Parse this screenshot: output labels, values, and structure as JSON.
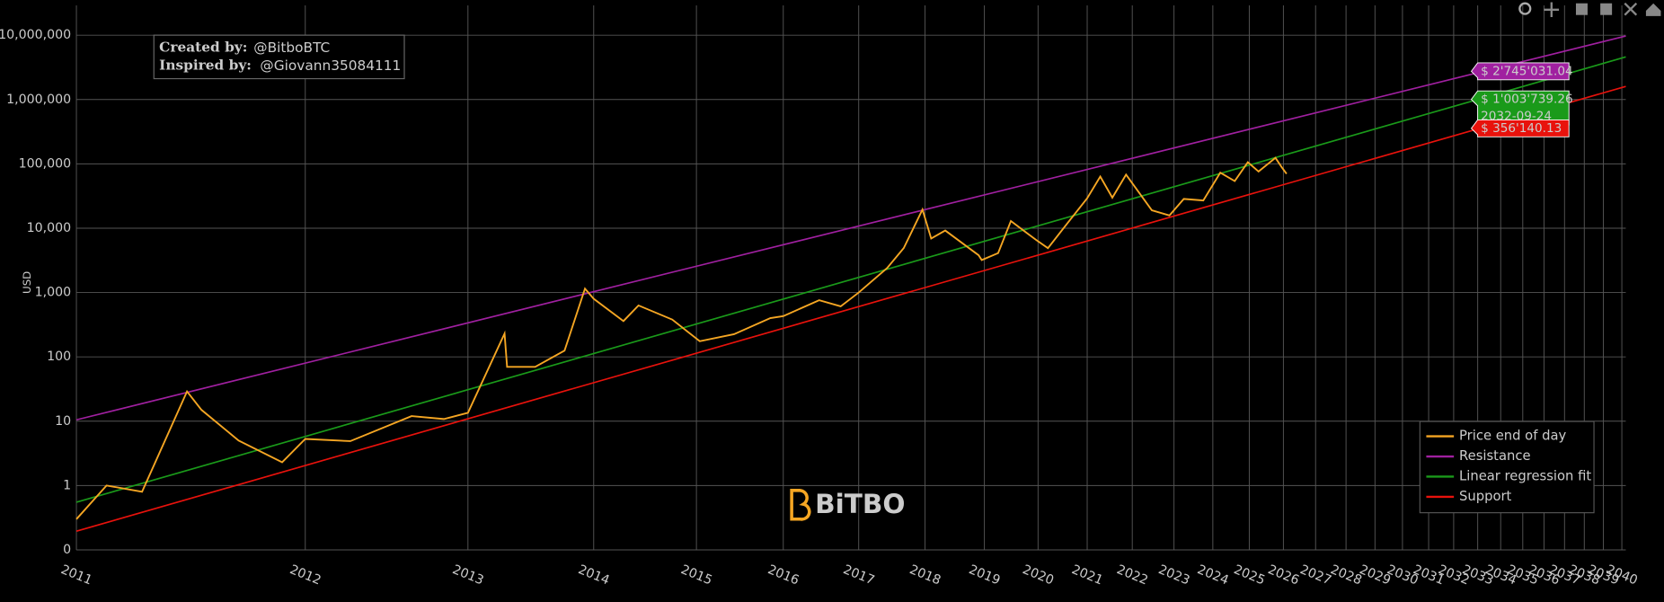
{
  "chart_data": {
    "type": "line",
    "y_title": "USD",
    "xlog": true,
    "ylog": true,
    "grid": true,
    "legend": "bottom right",
    "xlim": [
      728,
      11400
    ],
    "ylim": [
      0.1,
      29000000
    ],
    "xticks": [
      {
        "value": 728,
        "label": "2011"
      },
      {
        "value": 1093,
        "label": "2012"
      },
      {
        "value": 1459,
        "label": "2013"
      },
      {
        "value": 1824,
        "label": "2014"
      },
      {
        "value": 2189,
        "label": "2015"
      },
      {
        "value": 2554,
        "label": "2016"
      },
      {
        "value": 2920,
        "label": "2017"
      },
      {
        "value": 3285,
        "label": "2018"
      },
      {
        "value": 3650,
        "label": "2019"
      },
      {
        "value": 4015,
        "label": "2020"
      },
      {
        "value": 4381,
        "label": "2021"
      },
      {
        "value": 4746,
        "label": "2022"
      },
      {
        "value": 5111,
        "label": "2023"
      },
      {
        "value": 5476,
        "label": "2024"
      },
      {
        "value": 5842,
        "label": "2025"
      },
      {
        "value": 6207,
        "label": "2026"
      },
      {
        "value": 6572,
        "label": "2027"
      },
      {
        "value": 6937,
        "label": "2028"
      },
      {
        "value": 7303,
        "label": "2029"
      },
      {
        "value": 7668,
        "label": "2030"
      },
      {
        "value": 8033,
        "label": "2031"
      },
      {
        "value": 8398,
        "label": "2032"
      },
      {
        "value": 8764,
        "label": "2033"
      },
      {
        "value": 9129,
        "label": "2034"
      },
      {
        "value": 9494,
        "label": "2035"
      },
      {
        "value": 9859,
        "label": "2036"
      },
      {
        "value": 10225,
        "label": "2037"
      },
      {
        "value": 10590,
        "label": "2038"
      },
      {
        "value": 10955,
        "label": "2039"
      },
      {
        "value": 11320,
        "label": "2040"
      }
    ],
    "yticks": [
      {
        "value": 0.1,
        "label": "0"
      },
      1,
      10,
      100,
      {
        "value": 1000,
        "label": "1,000"
      },
      {
        "value": 10000,
        "label": "10,000"
      },
      {
        "value": 100000,
        "label": "100,000"
      },
      {
        "value": 1000000,
        "label": "1,000,000"
      },
      {
        "value": 10000000,
        "label": "10,000,000"
      }
    ],
    "series": [
      {
        "name": "Price end of day",
        "color": "#f5a623",
        "x": [
          728,
          768,
          818,
          886,
          909,
          971,
          1049,
          1093,
          1184,
          1320,
          1398,
          1459,
          1557,
          1564,
          1644,
          1732,
          1796,
          1824,
          1923,
          1975,
          2097,
          2202,
          2340,
          2496,
          2554,
          2722,
          2828,
          2920,
          3071,
          3163,
          3270,
          3321,
          3405,
          3613,
          3633,
          3740,
          3826,
          4000,
          4086,
          4228,
          4380,
          4484,
          4581,
          4694,
          4914,
          5070,
          5201,
          5384,
          5549,
          5693,
          5827,
          5939,
          6120,
          6190,
          6242
        ],
        "values": [
          0.3,
          1.0,
          0.8,
          29,
          15,
          5,
          2.3,
          5.3,
          4.9,
          12,
          10.8,
          13.5,
          230,
          70,
          70,
          125,
          1150,
          800,
          360,
          630,
          380,
          175,
          225,
          400,
          430,
          760,
          610,
          1000,
          2400,
          4900,
          19500,
          6900,
          9200,
          3800,
          3200,
          4100,
          12900,
          6600,
          4900,
          11800,
          29000,
          63500,
          29800,
          68000,
          19000,
          15800,
          28500,
          27000,
          73000,
          54000,
          106000,
          76000,
          124000,
          88000,
          70000
        ]
      },
      {
        "name": "Resistance",
        "color": "#a020a0",
        "x": [
          728,
          11400
        ],
        "values": [
          10.5,
          9700000
        ]
      },
      {
        "name": "Linear regression fit",
        "color": "#1a9a1a",
        "x": [
          728,
          11400
        ],
        "values": [
          0.55,
          4600000
        ]
      },
      {
        "name": "Support",
        "color": "#e8120c",
        "x": [
          728,
          11400
        ],
        "values": [
          0.195,
          1600000
        ]
      }
    ],
    "hover": {
      "x": 8665,
      "date": "2032-09-24",
      "values": [
        2745031.04,
        1003739.26,
        356140.13
      ],
      "value_labels": [
        "$ 2'745'031.04",
        "$ 1'003'739.26",
        "$ 356'140.13"
      ]
    }
  },
  "credits": {
    "created_label": "Created by:",
    "created_handle": "@BitboBTC",
    "inspired_label": "Inspired by:",
    "inspired_handle": "@Giovann35084111"
  },
  "watermark": "BiTBO"
}
